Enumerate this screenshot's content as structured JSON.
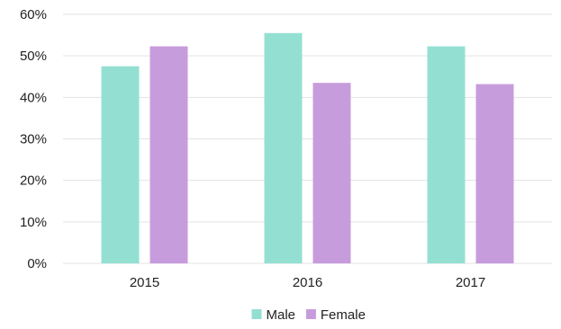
{
  "chart_data": {
    "type": "bar",
    "title": "",
    "xlabel": "",
    "ylabel": "",
    "categories": [
      "2015",
      "2016",
      "2017"
    ],
    "series": [
      {
        "name": "Male",
        "values": [
          47.5,
          55.5,
          52.3
        ],
        "color": "#93e0d3"
      },
      {
        "name": "Female",
        "values": [
          52.3,
          43.5,
          43.2
        ],
        "color": "#c79cdc"
      }
    ],
    "ylim": [
      0,
      60
    ],
    "yticks": [
      0,
      10,
      20,
      30,
      40,
      50,
      60
    ],
    "ytick_labels": [
      "0%",
      "10%",
      "20%",
      "30%",
      "40%",
      "50%",
      "60%"
    ],
    "grid": true,
    "legend_position": "bottom"
  }
}
